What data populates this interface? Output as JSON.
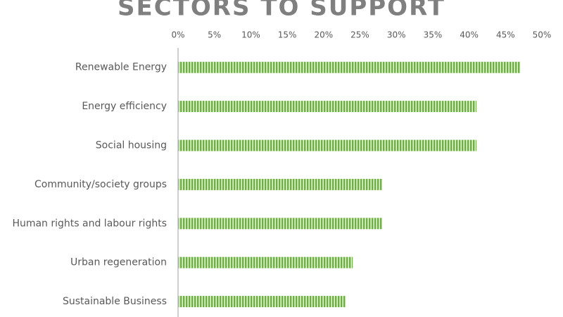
{
  "chart_data": {
    "type": "hbar",
    "title": "SECTORS TO SUPPORT",
    "categories": [
      "Renewable Energy",
      "Energy efficiency",
      "Social housing",
      "Community/society groups",
      "Human rights and labour rights",
      "Urban regeneration",
      "Sustainable Business"
    ],
    "values": [
      47,
      41,
      41,
      28,
      28,
      24,
      23
    ],
    "color": "#70ad47",
    "xlim": [
      0,
      50
    ],
    "xticks": [
      {
        "value": 0,
        "label": "0%"
      },
      {
        "value": 5,
        "label": "5%"
      },
      {
        "value": 10,
        "label": "10%"
      },
      {
        "value": 15,
        "label": "15%"
      },
      {
        "value": 20,
        "label": "20%"
      },
      {
        "value": 25,
        "label": "25%"
      },
      {
        "value": 30,
        "label": "30%"
      },
      {
        "value": 35,
        "label": "35%"
      },
      {
        "value": 40,
        "label": "40%"
      },
      {
        "value": 45,
        "label": "45%"
      },
      {
        "value": 50,
        "label": "50%"
      }
    ],
    "grid": false
  }
}
